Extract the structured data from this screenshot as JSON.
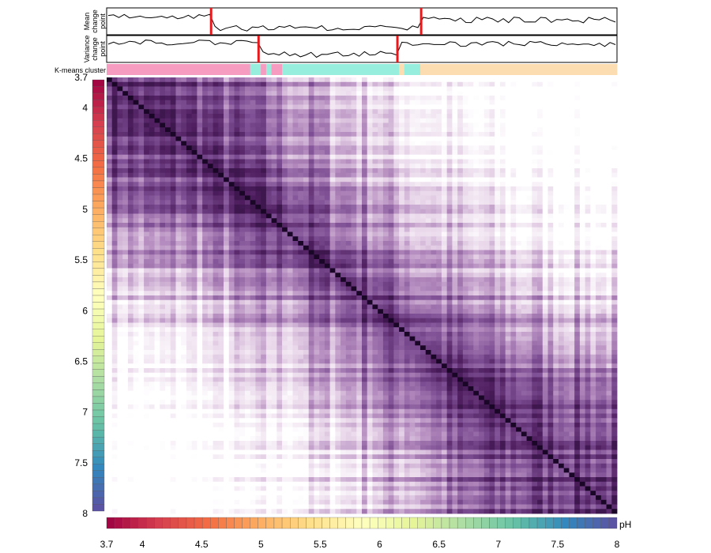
{
  "chart_data": {
    "type": "heatmap",
    "title": "",
    "variable": "pH",
    "axis_label": "pH",
    "range": [
      3.7,
      8
    ],
    "ticks": [
      3.7,
      4,
      4.5,
      5,
      5.5,
      6,
      6.5,
      7,
      7.5,
      8
    ],
    "n_samples": 96,
    "matrix_description": "Sample-by-sample similarity matrix ordered by pH; darker purple = higher similarity; diagonal is maximal.",
    "similarity_colormap": [
      "#ffffff",
      "#e9d7ea",
      "#b58cbf",
      "#7e4f94",
      "#4e1e5f",
      "#1a0626"
    ],
    "ph_colormap": [
      "#9e0142",
      "#d53e4f",
      "#f46d43",
      "#fdae61",
      "#fee08b",
      "#ffffbf",
      "#e6f598",
      "#abdda4",
      "#66c2a5",
      "#3288bd",
      "#5e4fa2"
    ],
    "tracks": {
      "mean": {
        "label_lines": [
          "Mean",
          "change",
          "point"
        ],
        "change_points_ph": [
          4.58,
          6.35
        ],
        "line_color": "#000000",
        "marker_color": "#e41a1c"
      },
      "variance": {
        "label_lines": [
          "Variance",
          "change",
          "point"
        ],
        "change_points_ph": [
          4.98,
          6.15
        ],
        "line_color": "#000000",
        "marker_color": "#e41a1c"
      },
      "kmeans": {
        "label": "K-means cluster",
        "segments": [
          {
            "cluster": 1,
            "color": "#f79cc1",
            "from_ph": 3.7,
            "to_ph": 4.95
          },
          {
            "cluster": 2,
            "color": "#98eedc",
            "from_ph": 4.95,
            "to_ph": 6.35
          },
          {
            "cluster": 3,
            "color": "#fcdcb1",
            "from_ph": 6.35,
            "to_ph": 8.0
          }
        ]
      }
    },
    "grid": false,
    "legend": "colour bars on left and bottom"
  }
}
